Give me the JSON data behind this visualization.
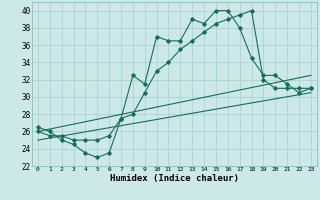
{
  "title": "",
  "xlabel": "Humidex (Indice chaleur)",
  "bg_color": "#cce8e8",
  "grid_color": "#aad4d4",
  "line_color": "#1a6b5a",
  "xlim": [
    -0.5,
    23.5
  ],
  "ylim": [
    22,
    41
  ],
  "xticks": [
    0,
    1,
    2,
    3,
    4,
    5,
    6,
    7,
    8,
    9,
    10,
    11,
    12,
    13,
    14,
    15,
    16,
    17,
    18,
    19,
    20,
    21,
    22,
    23
  ],
  "yticks": [
    22,
    24,
    26,
    28,
    30,
    32,
    34,
    36,
    38,
    40
  ],
  "main_y": [
    26.5,
    26.0,
    25.0,
    24.5,
    23.5,
    23.0,
    23.5,
    27.5,
    32.5,
    31.5,
    37.0,
    36.5,
    36.5,
    39.0,
    38.5,
    40.0,
    40.0,
    38.0,
    34.5,
    32.5,
    32.5,
    31.5,
    30.5,
    31.0
  ],
  "line2_y": [
    26.0,
    25.5,
    25.5,
    25.0,
    25.0,
    25.0,
    25.5,
    27.5,
    28.0,
    30.5,
    33.0,
    34.0,
    35.5,
    36.5,
    37.5,
    38.5,
    39.0,
    39.5,
    40.0,
    32.0,
    31.0,
    31.0,
    31.0,
    31.0
  ],
  "reg1_y0": 26.0,
  "reg1_y1": 32.5,
  "reg2_y0": 25.0,
  "reg2_y1": 30.5
}
